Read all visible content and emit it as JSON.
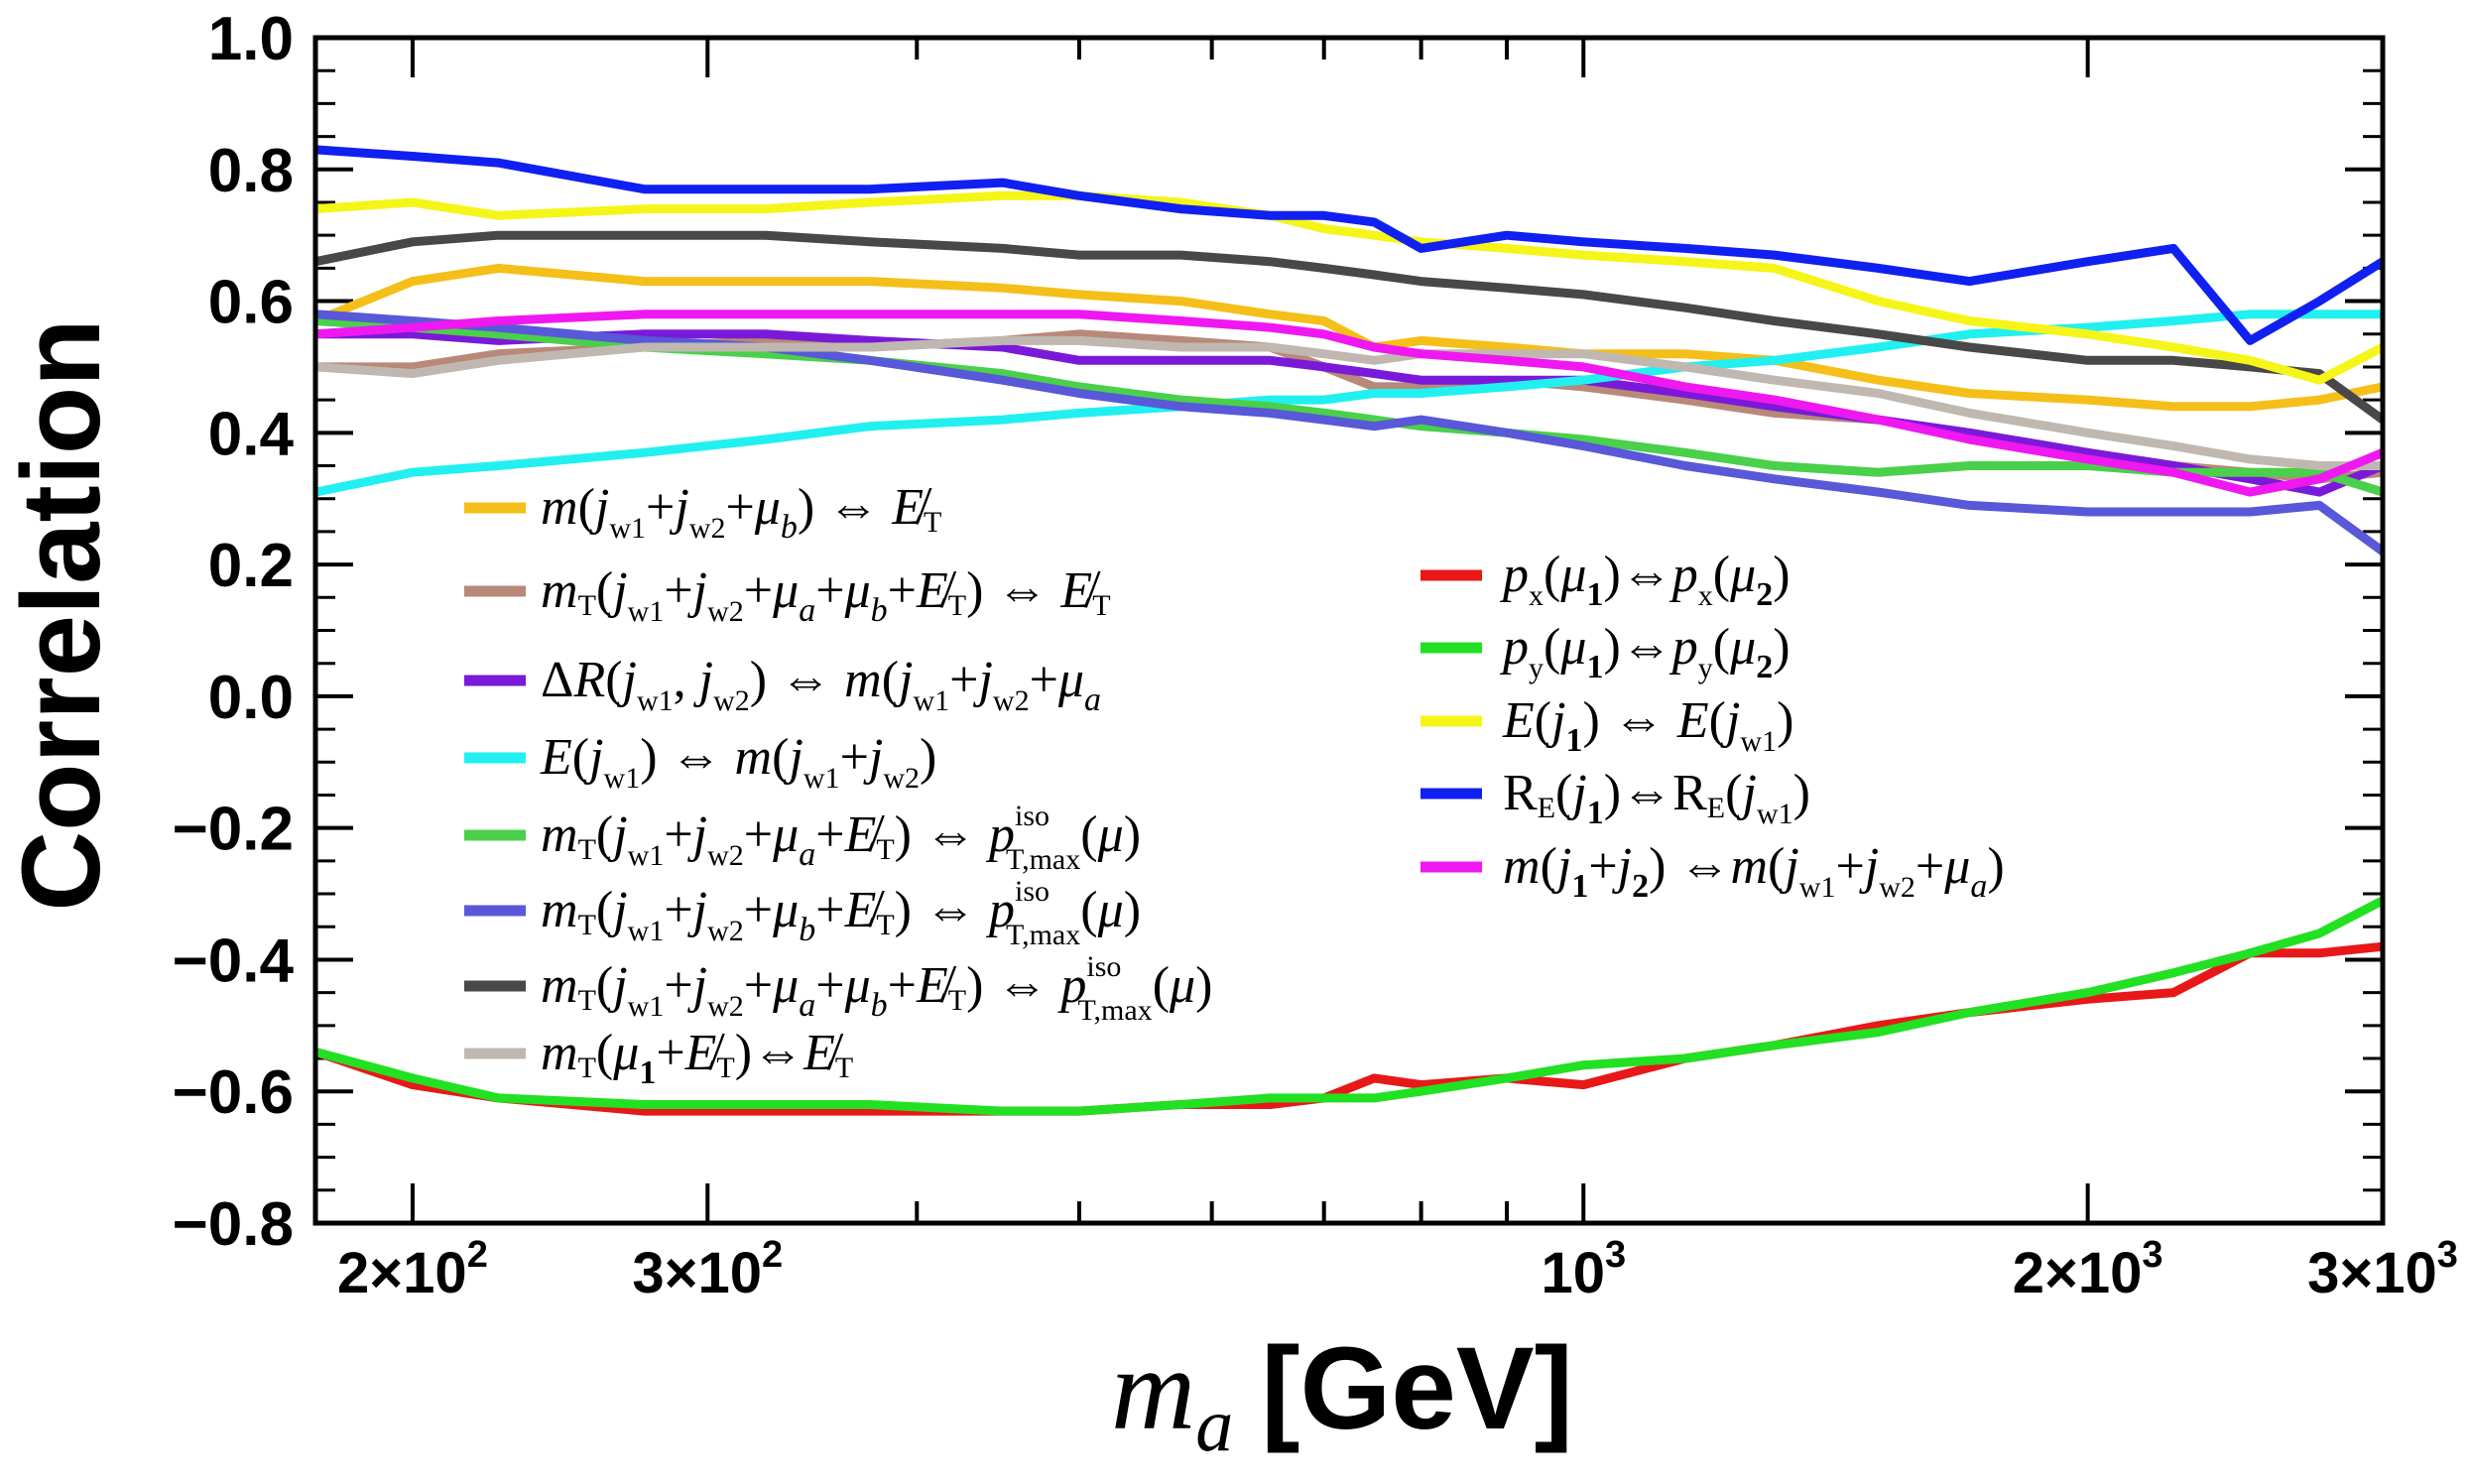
{
  "chart_data": {
    "type": "line",
    "ylabel": "Correlation",
    "xlabel_symbol": "m",
    "xlabel_sub": "a",
    "xlabel_unit": "[GeV]",
    "xscale": "log",
    "xlim": [
      175,
      3000
    ],
    "ylim": [
      -0.8,
      1.0
    ],
    "yticks": [
      "1.0",
      "0.8",
      "0.6",
      "0.4",
      "0.2",
      "0.0",
      "−0.2",
      "−0.4",
      "−0.6",
      "−0.8"
    ],
    "ytick_values": [
      1.0,
      0.8,
      0.6,
      0.4,
      0.2,
      0.0,
      -0.2,
      -0.4,
      -0.6,
      -0.8
    ],
    "xticks": [
      {
        "value": 200,
        "label": "2×10",
        "exp": "2"
      },
      {
        "value": 300,
        "label": "3×10",
        "exp": "2"
      },
      {
        "value": 1000,
        "label": "10",
        "exp": "3"
      },
      {
        "value": 2000,
        "label": "2×10",
        "exp": "3"
      },
      {
        "value": 3000,
        "label": "3×10",
        "exp": "3"
      }
    ],
    "grid": false,
    "legend_left_placement": "middle-left",
    "legend_right_placement": "middle-right",
    "x": [
      175,
      200,
      225,
      275,
      325,
      375,
      450,
      500,
      575,
      650,
      700,
      750,
      800,
      900,
      1000,
      1150,
      1300,
      1500,
      1700,
      2000,
      2250,
      2500,
      2750,
      3000
    ],
    "series": [
      {
        "legend": "m(jw1+jw2+μb) ⇔ MET",
        "color": "#f5bf1a",
        "values": [
          0.57,
          0.63,
          0.65,
          0.63,
          0.63,
          0.63,
          0.62,
          0.61,
          0.6,
          0.58,
          0.57,
          0.53,
          0.54,
          0.53,
          0.52,
          0.52,
          0.51,
          0.48,
          0.46,
          0.45,
          0.44,
          0.44,
          0.45,
          0.47
        ]
      },
      {
        "legend": "mT(jw1+jw2+μa+μb+MET) ⇔ MET",
        "color": "#b88878",
        "values": [
          0.5,
          0.5,
          0.52,
          0.53,
          0.54,
          0.53,
          0.54,
          0.55,
          0.54,
          0.53,
          0.5,
          0.47,
          0.47,
          0.48,
          0.47,
          0.45,
          0.43,
          0.42,
          0.4,
          0.37,
          0.35,
          0.34,
          0.33,
          0.34
        ]
      },
      {
        "legend": "ΔR(jw1,jw2) ⇔ m(jw1+jw2+μa)",
        "color": "#7a1ad8",
        "values": [
          0.55,
          0.55,
          0.54,
          0.55,
          0.55,
          0.54,
          0.53,
          0.51,
          0.51,
          0.51,
          0.5,
          0.49,
          0.48,
          0.48,
          0.48,
          0.46,
          0.44,
          0.42,
          0.4,
          0.37,
          0.35,
          0.33,
          0.31,
          0.35
        ]
      },
      {
        "legend": "E(jw1) ⇔ m(jw1+jw2)",
        "color": "#22f0f0",
        "values": [
          0.31,
          0.34,
          0.35,
          0.37,
          0.39,
          0.41,
          0.42,
          0.43,
          0.44,
          0.45,
          0.45,
          0.46,
          0.46,
          0.47,
          0.48,
          0.5,
          0.51,
          0.53,
          0.55,
          0.56,
          0.57,
          0.58,
          0.58,
          0.58
        ]
      },
      {
        "legend": "mT(jw1+jw2+μa+MET) ⇔ pT,max iso(μ)",
        "color": "#4ad04a",
        "values": [
          0.57,
          0.56,
          0.55,
          0.53,
          0.52,
          0.51,
          0.49,
          0.47,
          0.45,
          0.44,
          0.43,
          0.42,
          0.41,
          0.4,
          0.39,
          0.37,
          0.35,
          0.34,
          0.35,
          0.35,
          0.34,
          0.34,
          0.34,
          0.31
        ]
      },
      {
        "legend": "mT(jw1+jw2+μb+MET) ⇔ pT,max iso(μ)",
        "color": "#5858d8",
        "values": [
          0.58,
          0.57,
          0.56,
          0.54,
          0.53,
          0.51,
          0.48,
          0.46,
          0.44,
          0.43,
          0.42,
          0.41,
          0.42,
          0.4,
          0.38,
          0.35,
          0.33,
          0.31,
          0.29,
          0.28,
          0.28,
          0.28,
          0.29,
          0.22
        ]
      },
      {
        "legend": "mT(jw1+jw2+μa+μb+MET) ⇔ pT,max iso(μ)",
        "color": "#484848",
        "values": [
          0.66,
          0.69,
          0.7,
          0.7,
          0.7,
          0.69,
          0.68,
          0.67,
          0.67,
          0.66,
          0.65,
          0.64,
          0.63,
          0.62,
          0.61,
          0.59,
          0.57,
          0.55,
          0.53,
          0.51,
          0.51,
          0.5,
          0.49,
          0.42
        ]
      },
      {
        "legend": "mT(μ1+MET) ⇔ MET",
        "color": "#c0b8b0",
        "values": [
          0.5,
          0.49,
          0.51,
          0.53,
          0.53,
          0.53,
          0.54,
          0.54,
          0.53,
          0.53,
          0.52,
          0.51,
          0.52,
          0.52,
          0.52,
          0.5,
          0.48,
          0.46,
          0.43,
          0.4,
          0.38,
          0.36,
          0.35,
          0.35
        ]
      },
      {
        "legend": "px(μ1) ⇔ px(μ2)",
        "color": "#e81818",
        "values": [
          -0.54,
          -0.59,
          -0.61,
          -0.63,
          -0.63,
          -0.63,
          -0.63,
          -0.63,
          -0.62,
          -0.62,
          -0.61,
          -0.58,
          -0.59,
          -0.58,
          -0.59,
          -0.55,
          -0.53,
          -0.5,
          -0.48,
          -0.46,
          -0.45,
          -0.39,
          -0.39,
          -0.38
        ]
      },
      {
        "legend": "py(μ1) ⇔ py(μ2)",
        "color": "#22e022",
        "values": [
          -0.54,
          -0.58,
          -0.61,
          -0.62,
          -0.62,
          -0.62,
          -0.63,
          -0.63,
          -0.62,
          -0.61,
          -0.61,
          -0.61,
          -0.6,
          -0.58,
          -0.56,
          -0.55,
          -0.53,
          -0.51,
          -0.48,
          -0.45,
          -0.42,
          -0.39,
          -0.36,
          -0.31
        ]
      },
      {
        "legend": "E(j1) ⇔ E(jw1)",
        "color": "#f5f51a",
        "values": [
          0.74,
          0.75,
          0.73,
          0.74,
          0.74,
          0.75,
          0.76,
          0.76,
          0.75,
          0.73,
          0.71,
          0.7,
          0.69,
          0.68,
          0.67,
          0.66,
          0.65,
          0.6,
          0.57,
          0.55,
          0.53,
          0.51,
          0.48,
          0.53
        ]
      },
      {
        "legend": "RE(j1) ⇔ RE(jw1)",
        "color": "#1020f0",
        "values": [
          0.83,
          0.82,
          0.81,
          0.77,
          0.77,
          0.77,
          0.78,
          0.76,
          0.74,
          0.73,
          0.73,
          0.72,
          0.68,
          0.7,
          0.69,
          0.68,
          0.67,
          0.65,
          0.63,
          0.66,
          0.68,
          0.54,
          0.6,
          0.66
        ]
      },
      {
        "legend": "m(j1+j2) ⇔ m(jw1+jw2+μa)",
        "color": "#f018f0",
        "values": [
          0.55,
          0.56,
          0.57,
          0.58,
          0.58,
          0.58,
          0.58,
          0.58,
          0.57,
          0.56,
          0.55,
          0.53,
          0.52,
          0.51,
          0.5,
          0.47,
          0.45,
          0.42,
          0.39,
          0.36,
          0.34,
          0.31,
          0.33,
          0.37
        ]
      }
    ]
  }
}
